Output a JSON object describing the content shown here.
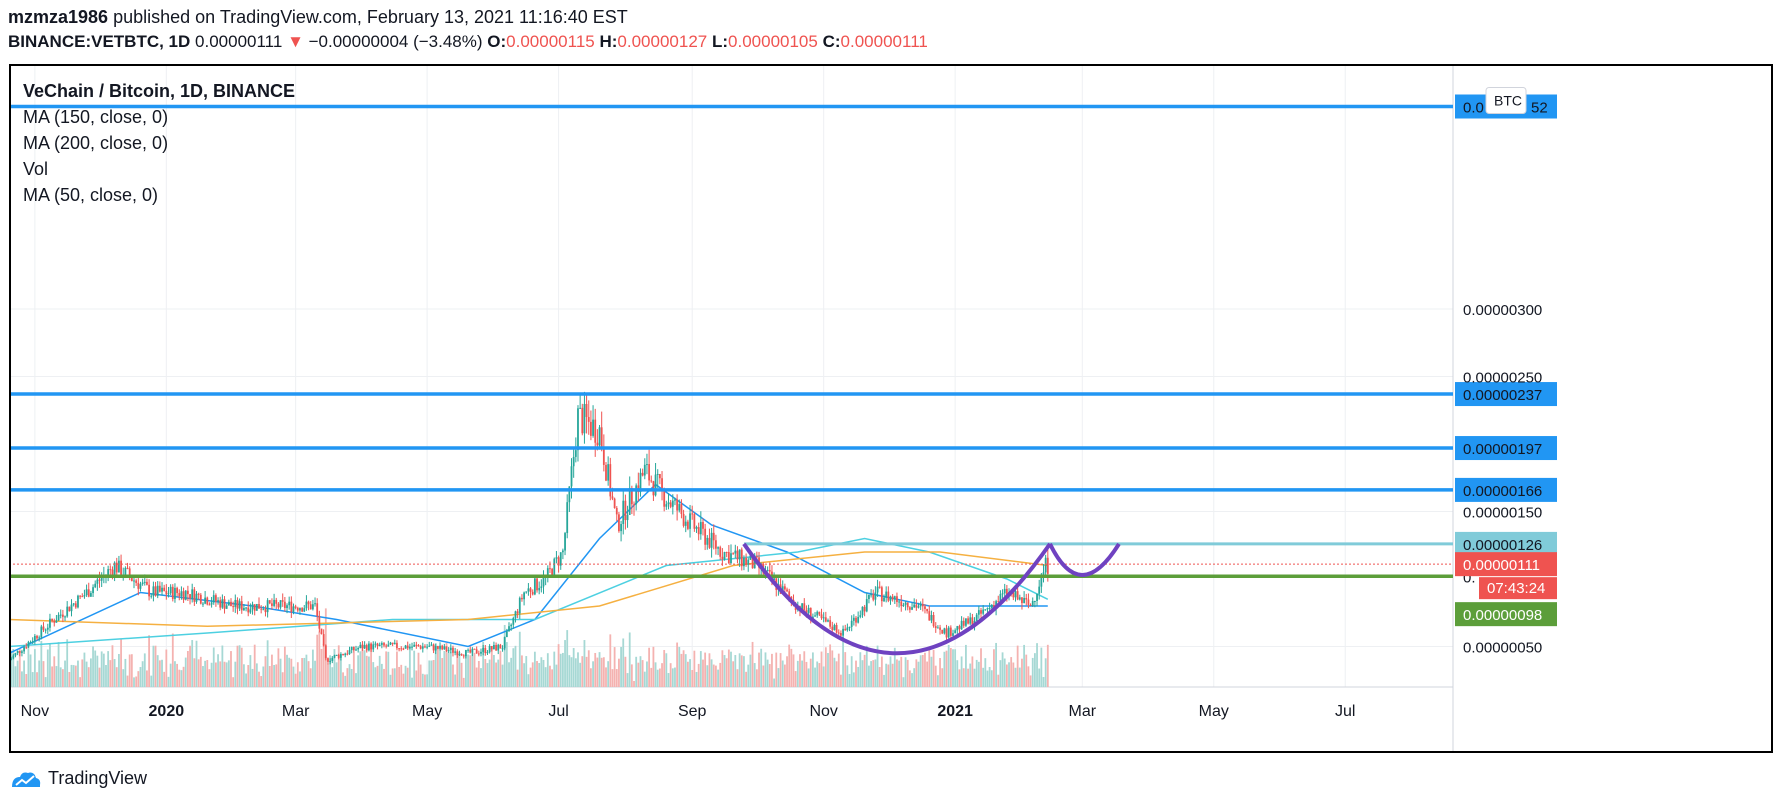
{
  "header": {
    "author": "mzmza1986",
    "published_text": "published on TradingView.com, February 13, 2021 11:16:40 EST",
    "symbol": "BINANCE:VETBTC, 1D",
    "last": "0.00000111",
    "change": "−0.00000004 (−3.48%)",
    "o_label": "O:",
    "o": "0.00000115",
    "h_label": "H:",
    "h": "0.00000127",
    "l_label": "L:",
    "l": "0.00000105",
    "c_label": "C:",
    "c": "0.00000111"
  },
  "legend": {
    "title": "VeChain / Bitcoin, 1D, BINANCE",
    "items": [
      "MA (150, close, 0)",
      "MA (200, close, 0)",
      "Vol",
      "MA (50, close, 0)"
    ]
  },
  "currency_badge": "BTC",
  "countdown": "07:43:24",
  "footer": {
    "brand": "TradingView"
  },
  "colors": {
    "up": "#26a69a",
    "down": "#ef5350",
    "level": "#2196f3",
    "level_light": "#80cbd9",
    "support": "#5c9e3a",
    "pattern": "#6f42c1",
    "ma50": "#2196f3",
    "ma150": "#4dd0e1",
    "ma200": "#f5b041"
  },
  "chart_data": {
    "type": "candlestick",
    "price_range": [
      2e-07,
      4.8e-06
    ],
    "y_ticks": [
      {
        "value": 5e-07,
        "label": "0.00000050"
      },
      {
        "value": 1.5e-06,
        "label": "0.00000150"
      },
      {
        "value": 2.5e-06,
        "label": "0.00000250"
      },
      {
        "value": 3e-06,
        "label": "0.00000300"
      }
    ],
    "x_ticks": [
      {
        "date": "2019-11-01",
        "label": "Nov",
        "bold": false
      },
      {
        "date": "2020-01-01",
        "label": "2020",
        "bold": true
      },
      {
        "date": "2020-03-01",
        "label": "Mar",
        "bold": false
      },
      {
        "date": "2020-05-01",
        "label": "May",
        "bold": false
      },
      {
        "date": "2020-07-01",
        "label": "Jul",
        "bold": false
      },
      {
        "date": "2020-09-01",
        "label": "Sep",
        "bold": false
      },
      {
        "date": "2020-11-01",
        "label": "Nov",
        "bold": false
      },
      {
        "date": "2021-01-01",
        "label": "2021",
        "bold": true
      },
      {
        "date": "2021-03-01",
        "label": "Mar",
        "bold": false
      },
      {
        "date": "2021-05-01",
        "label": "May",
        "bold": false
      },
      {
        "date": "2021-07-01",
        "label": "Jul",
        "bold": false
      }
    ],
    "x_range": [
      "2019-10-20",
      "2021-08-20"
    ],
    "horizontal_levels": [
      {
        "value": 4.5e-06,
        "label": "0.0",
        "label_tail": "52",
        "style": "blue"
      },
      {
        "value": 2.37e-06,
        "label": "0.00000237",
        "style": "blue"
      },
      {
        "value": 1.97e-06,
        "label": "0.00000197",
        "style": "blue"
      },
      {
        "value": 1.66e-06,
        "label": "0.00000166",
        "style": "blue"
      },
      {
        "value": 1.26e-06,
        "label": "0.00000126",
        "style": "light",
        "from": "2020-09-25"
      },
      {
        "value": 1.02e-06,
        "label": "0.",
        "style": "green"
      }
    ],
    "price_labels": [
      {
        "value": 1.11e-06,
        "label": "0.00000111",
        "style": "last"
      },
      {
        "value": 9.8e-07,
        "label": "0.00000098",
        "style": "green"
      }
    ],
    "cup_and_handle": {
      "cup": [
        [
          "2020-09-25",
          1.26e-06
        ],
        [
          "2020-12-05",
          4.5e-07
        ],
        [
          "2021-02-14",
          1.26e-06
        ]
      ],
      "handle": [
        [
          "2021-02-14",
          1.26e-06
        ],
        [
          "2021-03-01",
          1.03e-06
        ],
        [
          "2021-03-18",
          1.26e-06
        ]
      ]
    },
    "price_path": [
      [
        "2019-10-20",
        4e-07
      ],
      [
        "2019-11-10",
        7e-07
      ],
      [
        "2019-11-25",
        9e-07
      ],
      [
        "2019-12-08",
        1.1e-06
      ],
      [
        "2019-12-25",
        9e-07
      ],
      [
        "2020-01-10",
        9e-07
      ],
      [
        "2020-02-01",
        8e-07
      ],
      [
        "2020-02-20",
        8e-07
      ],
      [
        "2020-03-10",
        8e-07
      ],
      [
        "2020-03-15",
        4e-07
      ],
      [
        "2020-04-01",
        5e-07
      ],
      [
        "2020-04-15",
        5e-07
      ],
      [
        "2020-05-01",
        5e-07
      ],
      [
        "2020-05-20",
        4.5e-07
      ],
      [
        "2020-06-05",
        5e-07
      ],
      [
        "2020-06-15",
        9e-07
      ],
      [
        "2020-06-25",
        1e-06
      ],
      [
        "2020-07-03",
        1.2e-06
      ],
      [
        "2020-07-10",
        2.2e-06
      ],
      [
        "2020-07-20",
        2.1e-06
      ],
      [
        "2020-07-28",
        1.4e-06
      ],
      [
        "2020-08-10",
        1.8e-06
      ],
      [
        "2020-08-20",
        1.6e-06
      ],
      [
        "2020-09-01",
        1.4e-06
      ],
      [
        "2020-09-15",
        1.2e-06
      ],
      [
        "2020-10-01",
        1.1e-06
      ],
      [
        "2020-10-20",
        8e-07
      ],
      [
        "2020-11-10",
        6e-07
      ],
      [
        "2020-11-25",
        9e-07
      ],
      [
        "2020-12-15",
        8e-07
      ],
      [
        "2020-12-28",
        6e-07
      ],
      [
        "2021-01-10",
        7e-07
      ],
      [
        "2021-01-25",
        9e-07
      ],
      [
        "2021-02-05",
        8e-07
      ],
      [
        "2021-02-12",
        1.1e-06
      ]
    ],
    "ma50": [
      [
        "2019-10-20",
        4.5e-07
      ],
      [
        "2019-12-20",
        9e-07
      ],
      [
        "2020-02-10",
        8e-07
      ],
      [
        "2020-03-20",
        7e-07
      ],
      [
        "2020-05-20",
        5e-07
      ],
      [
        "2020-06-20",
        7e-07
      ],
      [
        "2020-07-20",
        1.3e-06
      ],
      [
        "2020-08-15",
        1.7e-06
      ],
      [
        "2020-09-10",
        1.4e-06
      ],
      [
        "2020-10-15",
        1.2e-06
      ],
      [
        "2020-11-20",
        9e-07
      ],
      [
        "2020-12-20",
        8e-07
      ],
      [
        "2021-01-20",
        8e-07
      ],
      [
        "2021-02-13",
        8e-07
      ]
    ],
    "ma150": [
      [
        "2019-10-20",
        5e-07
      ],
      [
        "2020-01-20",
        6e-07
      ],
      [
        "2020-04-15",
        7e-07
      ],
      [
        "2020-06-20",
        7e-07
      ],
      [
        "2020-08-20",
        1.1e-06
      ],
      [
        "2020-10-20",
        1.2e-06
      ],
      [
        "2020-11-20",
        1.3e-06
      ],
      [
        "2020-12-20",
        1.2e-06
      ],
      [
        "2021-01-25",
        1e-06
      ],
      [
        "2021-02-13",
        8.5e-07
      ]
    ],
    "ma200": [
      [
        "2019-10-20",
        7e-07
      ],
      [
        "2020-01-20",
        6.5e-07
      ],
      [
        "2020-05-20",
        7e-07
      ],
      [
        "2020-07-20",
        8e-07
      ],
      [
        "2020-09-20",
        1.1e-06
      ],
      [
        "2020-11-20",
        1.2e-06
      ],
      [
        "2020-12-25",
        1.2e-06
      ],
      [
        "2021-02-13",
        1.1e-06
      ]
    ]
  }
}
